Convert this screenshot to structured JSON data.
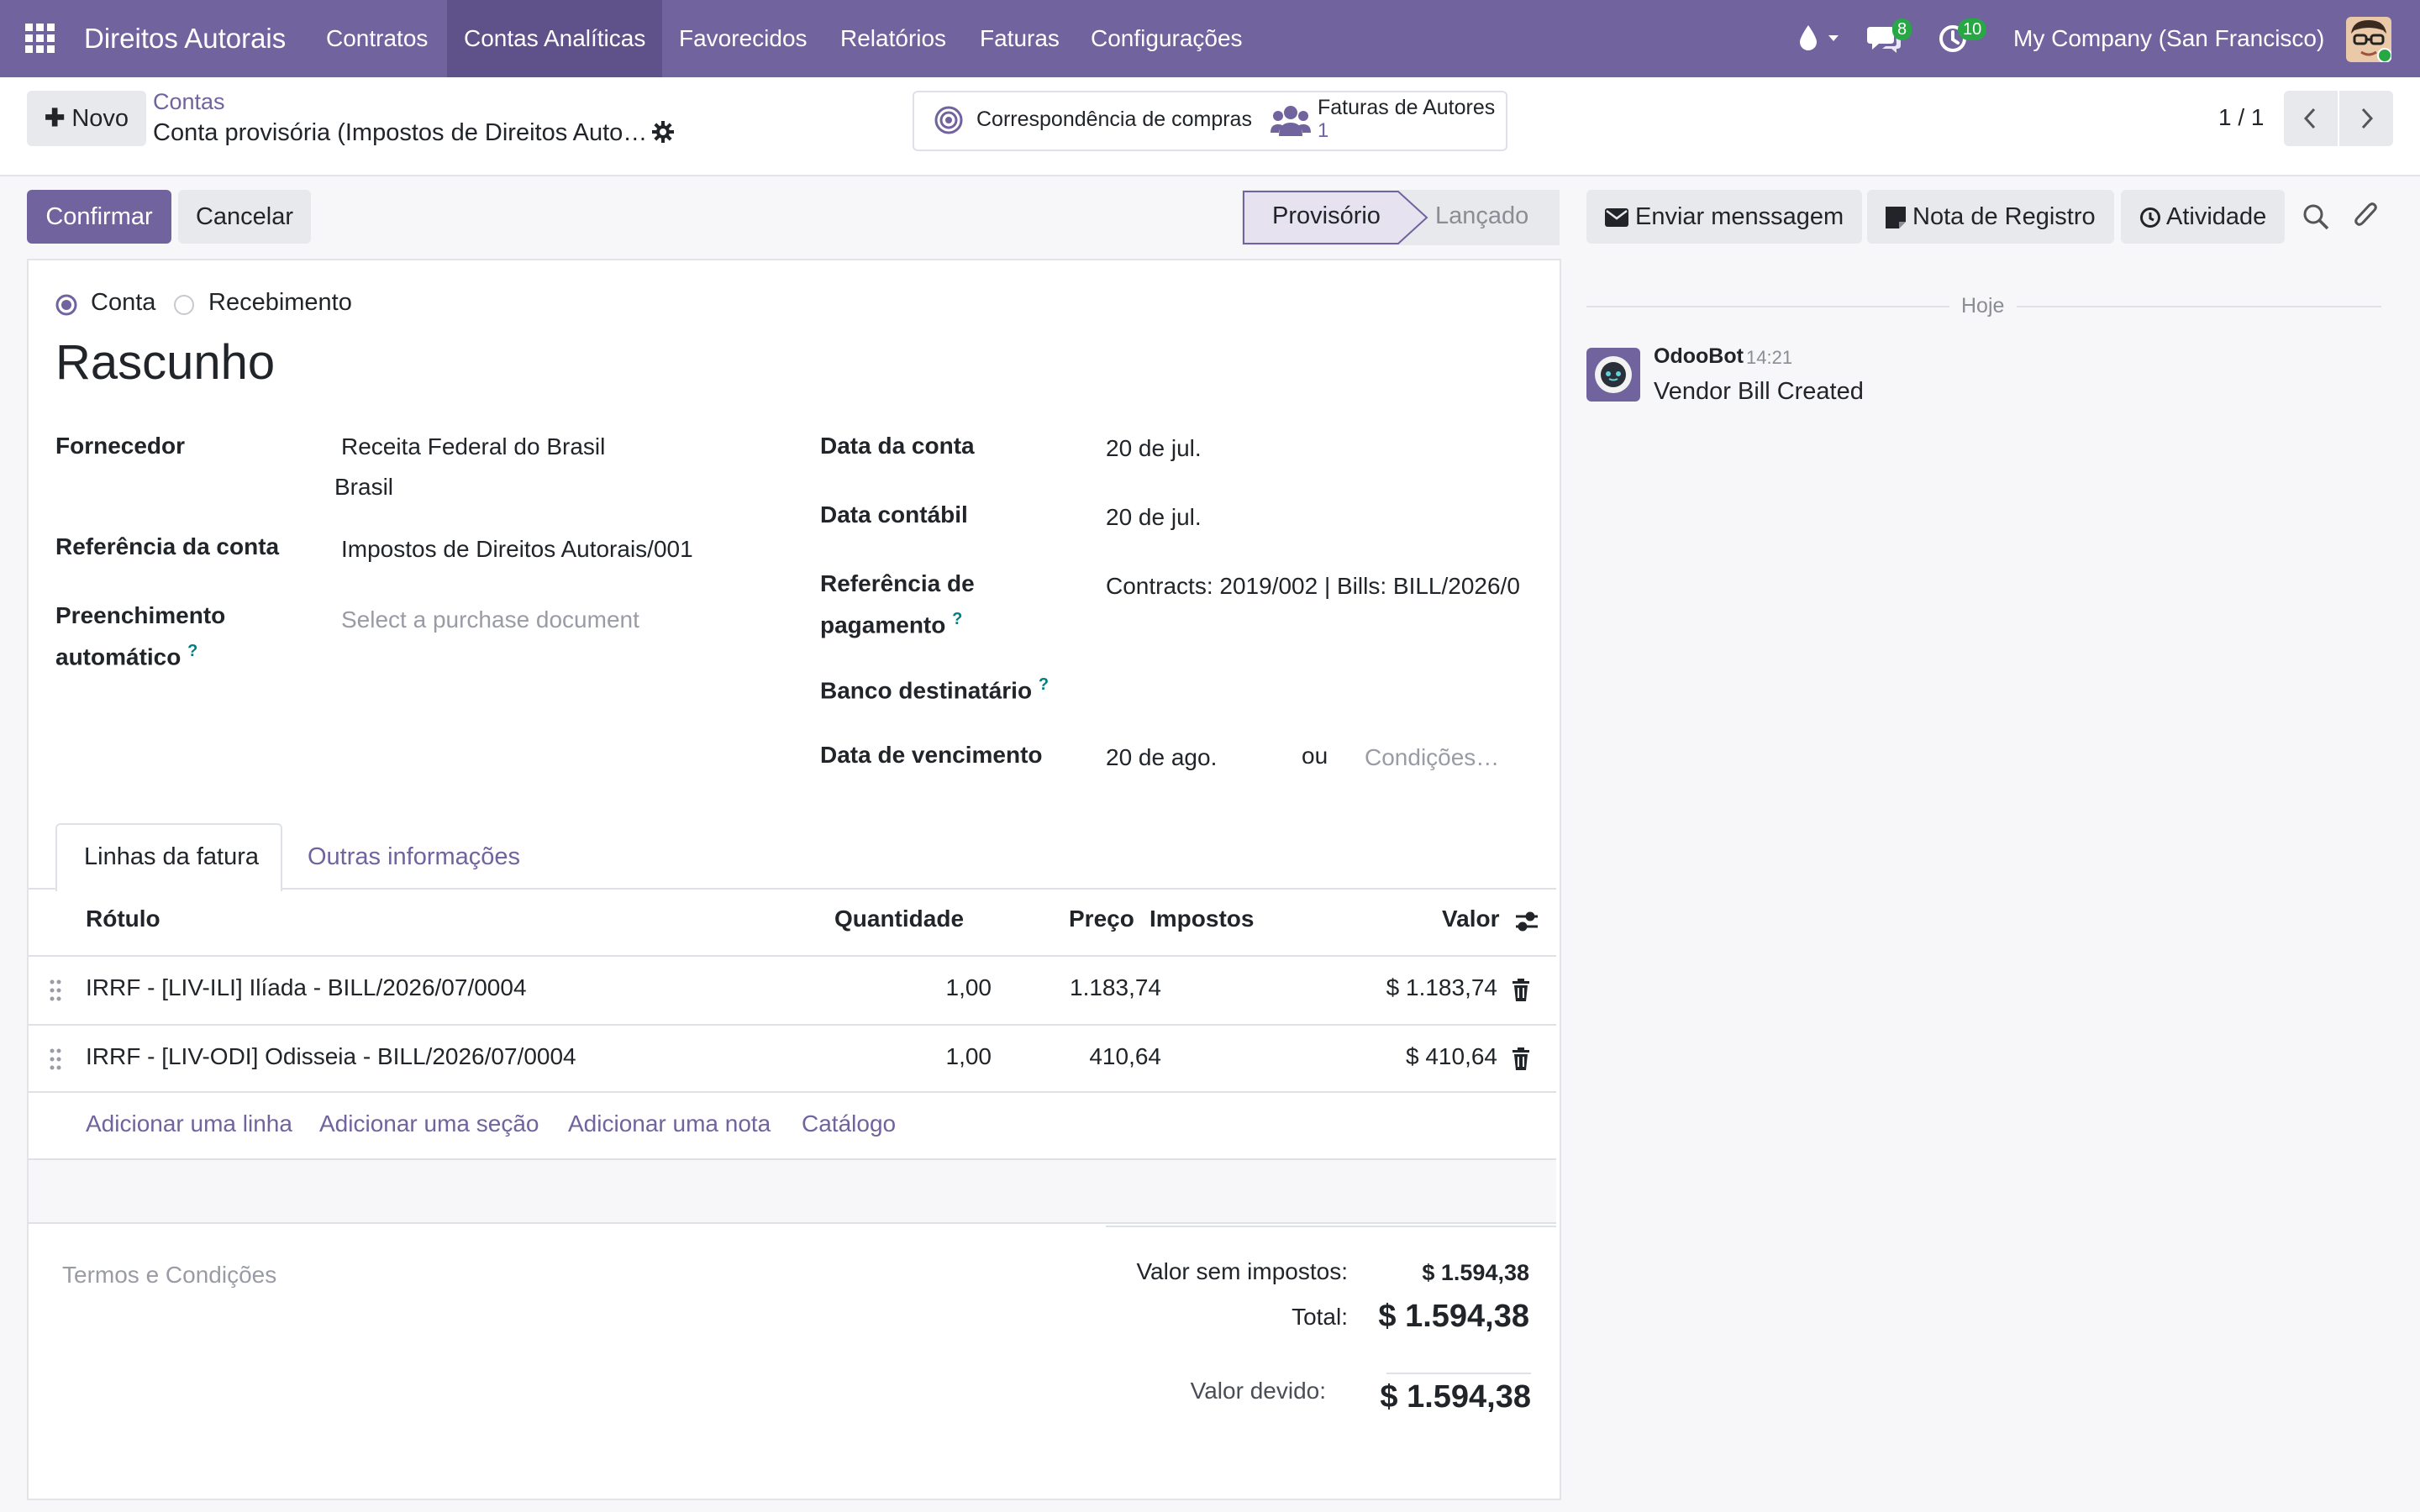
{
  "navbar": {
    "app_name": "Direitos Autorais",
    "menus": [
      "Contratos",
      "Contas Analíticas",
      "Favorecidos",
      "Relatórios",
      "Faturas",
      "Configurações"
    ],
    "messages_count": "8",
    "activities_count": "10",
    "company": "My Company (San Francisco)"
  },
  "control_panel": {
    "new_button": "Novo",
    "breadcrumb_parent": "Contas",
    "breadcrumb_current": "Conta provisória (Impostos de Direitos Auto…",
    "smart_buttons": {
      "purchase_matching": "Correspondência de compras",
      "author_bills_label": "Faturas de Autores",
      "author_bills_count": "1"
    },
    "pager": "1 / 1"
  },
  "actions": {
    "confirm": "Confirmar",
    "cancel": "Cancelar",
    "status_draft": "Provisório",
    "status_posted": "Lançado"
  },
  "form": {
    "type_options": [
      "Conta",
      "Recebimento"
    ],
    "selected_type": "Conta",
    "title": "Rascunho",
    "vendor_label": "Fornecedor",
    "vendor_name": "Receita Federal do Brasil",
    "vendor_country": "Brasil",
    "bill_reference_label": "Referência da conta",
    "bill_reference": "Impostos de Direitos Autorais/001",
    "autofill_label_1": "Preenchimento",
    "autofill_label_2": "automático",
    "autofill_placeholder": "Select a purchase document",
    "bill_date_label": "Data da conta",
    "bill_date": "20 de jul.",
    "accounting_date_label": "Data contábil",
    "accounting_date": "20 de jul.",
    "payment_reference_label_1": "Referência de",
    "payment_reference_label_2": "pagamento",
    "payment_reference": "Contracts: 2019/002 | Bills: BILL/2026/0",
    "recipient_bank_label": "Banco destinatário",
    "due_date_label": "Data de vencimento",
    "due_date": "20 de ago.",
    "or_text": "ou",
    "terms_placeholder": "Condições…",
    "help_mark": "?"
  },
  "tabs": [
    "Linhas da fatura",
    "Outras informações"
  ],
  "lines": {
    "headers": {
      "label": "Rótulo",
      "quantity": "Quantidade",
      "price": "Preço",
      "taxes": "Impostos",
      "amount": "Valor"
    },
    "rows": [
      {
        "label": "IRRF - [LIV-ILI] Ilíada - BILL/2026/07/0004",
        "quantity": "1,00",
        "price": "1.183,74",
        "taxes": "",
        "amount": "$ 1.183,74"
      },
      {
        "label": "IRRF - [LIV-ODI] Odisseia - BILL/2026/07/0004",
        "quantity": "1,00",
        "price": "410,64",
        "taxes": "",
        "amount": "$ 410,64"
      }
    ],
    "add_links": [
      "Adicionar uma linha",
      "Adicionar uma seção",
      "Adicionar uma nota",
      "Catálogo"
    ]
  },
  "totals": {
    "terms_placeholder": "Termos e Condições",
    "untaxed_label": "Valor sem impostos:",
    "untaxed_value": "$ 1.594,38",
    "total_label": "Total:",
    "total_value": "$ 1.594,38",
    "due_label": "Valor devido:",
    "due_value": "$ 1.594,38"
  },
  "chatter": {
    "send_message": "Enviar menssagem",
    "log_note": "Nota de Registro",
    "activity": "Atividade",
    "date_separator": "Hoje",
    "messages": [
      {
        "author": "OdooBot",
        "time": "14:21",
        "body": "Vendor Bill Created"
      }
    ]
  },
  "colors": {
    "brand": "#71639e",
    "brand_dark": "#5f5189",
    "badge": "#28a745",
    "link": "#71639e"
  }
}
